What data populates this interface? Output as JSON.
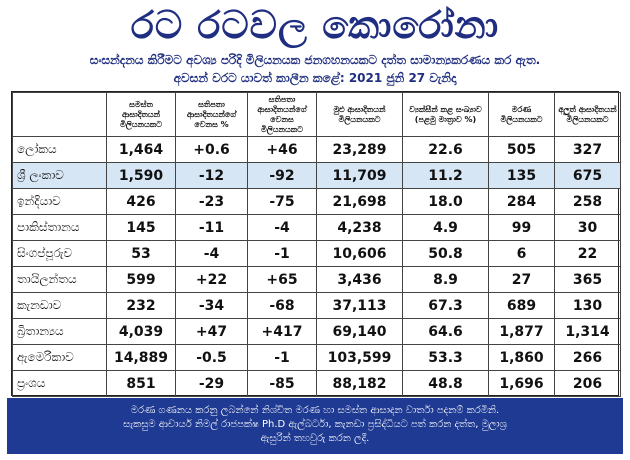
{
  "header": {
    "title": "රට රටවල කොරෝනා",
    "subtitle": "සංසන්දනය කිරීමට අවශ්‍ය පරිදි මිලියනයක ජනගහනයකට දත්ත සාමාන්‍යකරණය කර ඇත.",
    "updated": "අවසන් වරට යාවත් කාලීන කළේ: 2021 ජුනි 27 වැනිදා"
  },
  "table": {
    "columns": [
      "",
      "සමස්ත ආසාදිතයන් මිලියනයකට",
      "සතිපතා ආසාදිතයන්ගේ වෙනස %",
      "සතිපතා ආසාදිතයන්ගේ වෙනස මිලියනයකට",
      "මුළු ආසාදිතයන් මිලියනයකට",
      "ව්‍යක්සීන් කළ සංඛ්‍යාව (පළමු මාත්‍රාව %)",
      "මරණ මිලියනයකට",
      "අලුත් ආසාදිතයන් මිලියනයකට"
    ],
    "rows": [
      {
        "country": "ලෝකය",
        "v1": "1,464",
        "v2": "+0.6",
        "v3": "+46",
        "v4": "23,289",
        "v5": "22.6",
        "v6": "505",
        "v7": "327"
      },
      {
        "country": "ශ්‍රී ලංකාව",
        "v1": "1,590",
        "v2": "-12",
        "v3": "-92",
        "v4": "11,709",
        "v5": "11.2",
        "v6": "135",
        "v7": "675"
      },
      {
        "country": "ඉන්දියාව",
        "v1": "426",
        "v2": "-23",
        "v3": "-75",
        "v4": "21,698",
        "v5": "18.0",
        "v6": "284",
        "v7": "258"
      },
      {
        "country": "පාකිස්තානය",
        "v1": "145",
        "v2": "-11",
        "v3": "-4",
        "v4": "4,238",
        "v5": "4.9",
        "v6": "99",
        "v7": "30"
      },
      {
        "country": "සිංගප්පූරුව",
        "v1": "53",
        "v2": "-4",
        "v3": "-1",
        "v4": "10,606",
        "v5": "50.8",
        "v6": "6",
        "v7": "22"
      },
      {
        "country": "තායිලන්තය",
        "v1": "599",
        "v2": "+22",
        "v3": "+65",
        "v4": "3,436",
        "v5": "8.9",
        "v6": "27",
        "v7": "365"
      },
      {
        "country": "කැනඩාව",
        "v1": "232",
        "v2": "-34",
        "v3": "-68",
        "v4": "37,113",
        "v5": "67.3",
        "v6": "689",
        "v7": "130"
      },
      {
        "country": "බ්‍රිතාන්‍යය",
        "v1": "4,039",
        "v2": "+47",
        "v3": "+417",
        "v4": "69,140",
        "v5": "64.6",
        "v6": "1,877",
        "v7": "1,314"
      },
      {
        "country": "ඇමෙරිකාව",
        "v1": "14,889",
        "v2": "-0.5",
        "v3": "-1",
        "v4": "103,599",
        "v5": "53.3",
        "v6": "1,860",
        "v7": "266"
      },
      {
        "country": "ප්‍රංශය",
        "v1": "851",
        "v2": "-29",
        "v3": "-85",
        "v4": "88,182",
        "v5": "48.8",
        "v6": "1,696",
        "v7": "206"
      }
    ],
    "highlight_color": "#d6e6f5"
  },
  "footer": {
    "line1": "මරණ ගණනය කරනු ලබන්නේ නිශ්චිත මරණ හා සමස්ත ආසාදන වාර්තා පදනම් කරමිනි.",
    "line2": "සැකසුම ආචාර්ය නිමල් රාජපක්ෂ Ph.D ඇල්බර්ටා, කැනඩා ප්‍රසිද්ධියට පත් කරන දත්ත, මුලාශ්‍ර",
    "line3": "ඇසුරින් තහවුරු කරන ලදී.",
    "bg_color": "#1f3a93"
  },
  "colors": {
    "title": "#1f2e80"
  }
}
